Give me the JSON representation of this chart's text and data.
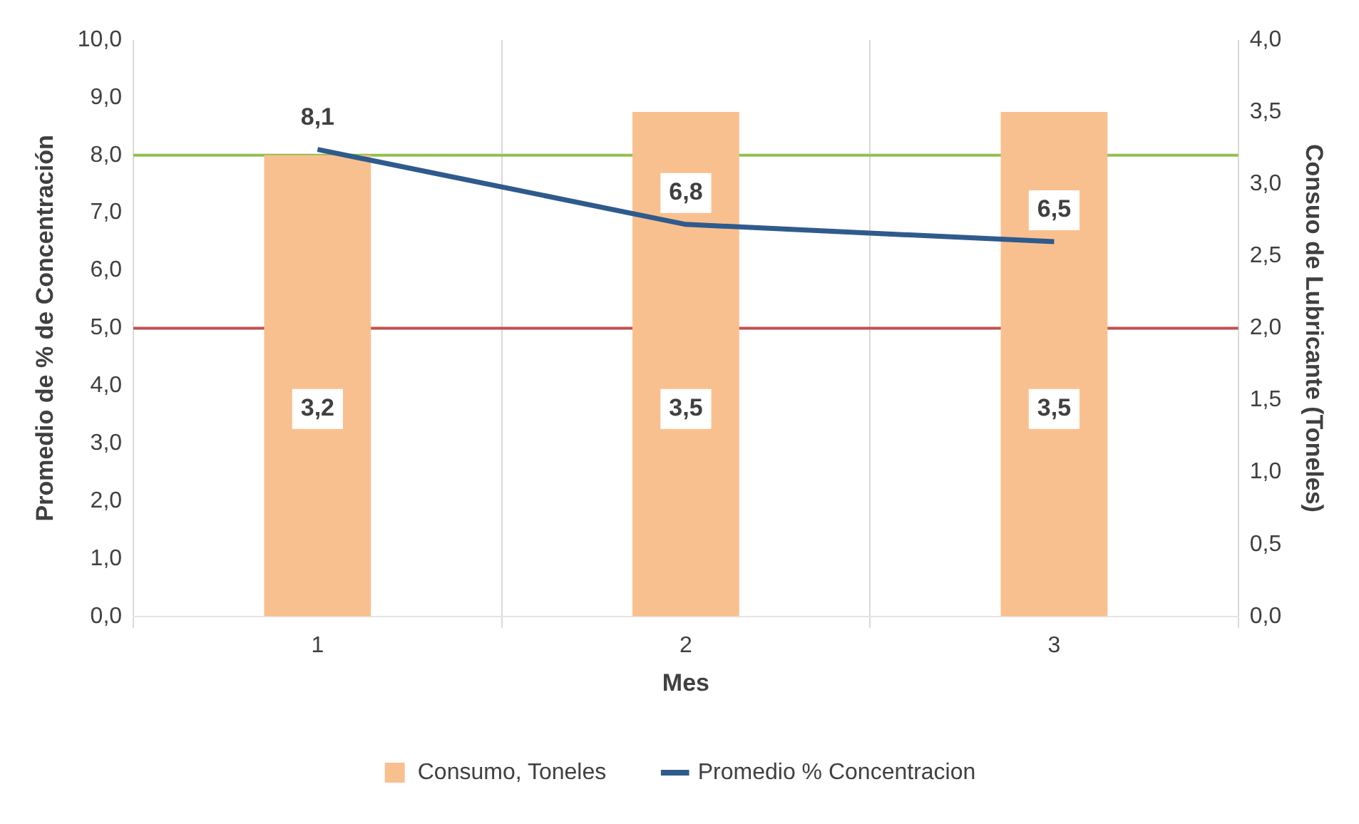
{
  "chart_data": {
    "type": "bar",
    "xlabel": "Mes",
    "ylabel": "Promedio de % de Concentración",
    "y2label": "Consuo de Lubricante (Toneles)",
    "categories": [
      "1",
      "2",
      "3"
    ],
    "series": [
      {
        "name": "Consumo, Toneles",
        "axis": "y2",
        "color": "#f9c08f",
        "values": [
          3.2,
          3.5,
          3.5
        ],
        "value_labels": [
          "3,2",
          "3,5",
          "3,5"
        ]
      },
      {
        "name": "Promedio % Concentracion",
        "type": "line",
        "color": "#2f5b8c",
        "values": [
          8.1,
          6.8,
          6.5
        ],
        "value_labels": [
          "8,1",
          "6,8",
          "6,5"
        ]
      }
    ],
    "ylim": [
      0,
      10
    ],
    "yticks": [
      {
        "value": 0,
        "label": "0,0"
      },
      {
        "value": 1,
        "label": "1,0"
      },
      {
        "value": 2,
        "label": "2,0"
      },
      {
        "value": 3,
        "label": "3,0"
      },
      {
        "value": 4,
        "label": "4,0"
      },
      {
        "value": 5,
        "label": "5,0"
      },
      {
        "value": 6,
        "label": "6,0"
      },
      {
        "value": 7,
        "label": "7,0"
      },
      {
        "value": 8,
        "label": "8,0"
      },
      {
        "value": 9,
        "label": "9,0"
      },
      {
        "value": 10,
        "label": "10,0"
      }
    ],
    "y2lim": [
      0,
      4
    ],
    "y2ticks": [
      {
        "value": 0,
        "label": "0,0"
      },
      {
        "value": 0.5,
        "label": "0,5"
      },
      {
        "value": 1,
        "label": "1,0"
      },
      {
        "value": 1.5,
        "label": "1,5"
      },
      {
        "value": 2,
        "label": "2,0"
      },
      {
        "value": 2.5,
        "label": "2,5"
      },
      {
        "value": 3,
        "label": "3,0"
      },
      {
        "value": 3.5,
        "label": "3,5"
      },
      {
        "value": 4,
        "label": "4,0"
      }
    ],
    "ref_lines": [
      {
        "axis": "y",
        "value": 8,
        "color": "#92c050"
      },
      {
        "axis": "y",
        "value": 5,
        "color": "#c0504d"
      }
    ],
    "grid": "x",
    "legend": "bottom",
    "marker": "none"
  }
}
